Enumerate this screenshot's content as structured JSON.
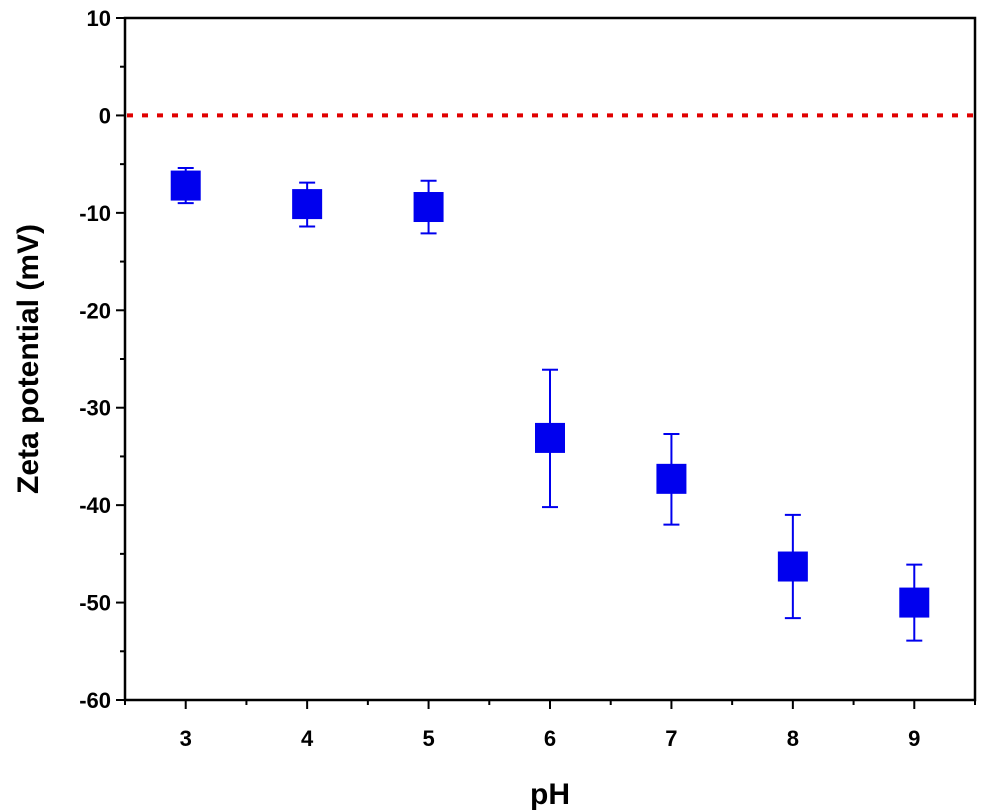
{
  "chart_data": {
    "type": "scatter",
    "title": "",
    "xlabel": "pH",
    "ylabel": "Zeta potential (mV)",
    "xlim": [
      2.5,
      9.5
    ],
    "ylim": [
      -60,
      10
    ],
    "xticks": [
      3,
      4,
      5,
      6,
      7,
      8,
      9
    ],
    "yticks": [
      10,
      0,
      -10,
      -20,
      -30,
      -40,
      -50,
      -60
    ],
    "grid": false,
    "legend": "none",
    "reference_line": {
      "y": 0,
      "style": "dotted",
      "color": "#e00000"
    },
    "series": [
      {
        "marker": "square",
        "color": "#0000ee",
        "x": [
          3,
          4,
          5,
          6,
          7,
          8,
          9
        ],
        "y": [
          -7.2,
          -9.1,
          -9.4,
          -33.1,
          -37.3,
          -46.3,
          -50.0
        ],
        "err_upper": [
          -5.4,
          -6.9,
          -6.7,
          -26.1,
          -32.7,
          -41.0,
          -46.1
        ],
        "err_lower": [
          -9.0,
          -11.4,
          -12.1,
          -40.2,
          -42.0,
          -51.6,
          -53.9
        ]
      }
    ]
  }
}
